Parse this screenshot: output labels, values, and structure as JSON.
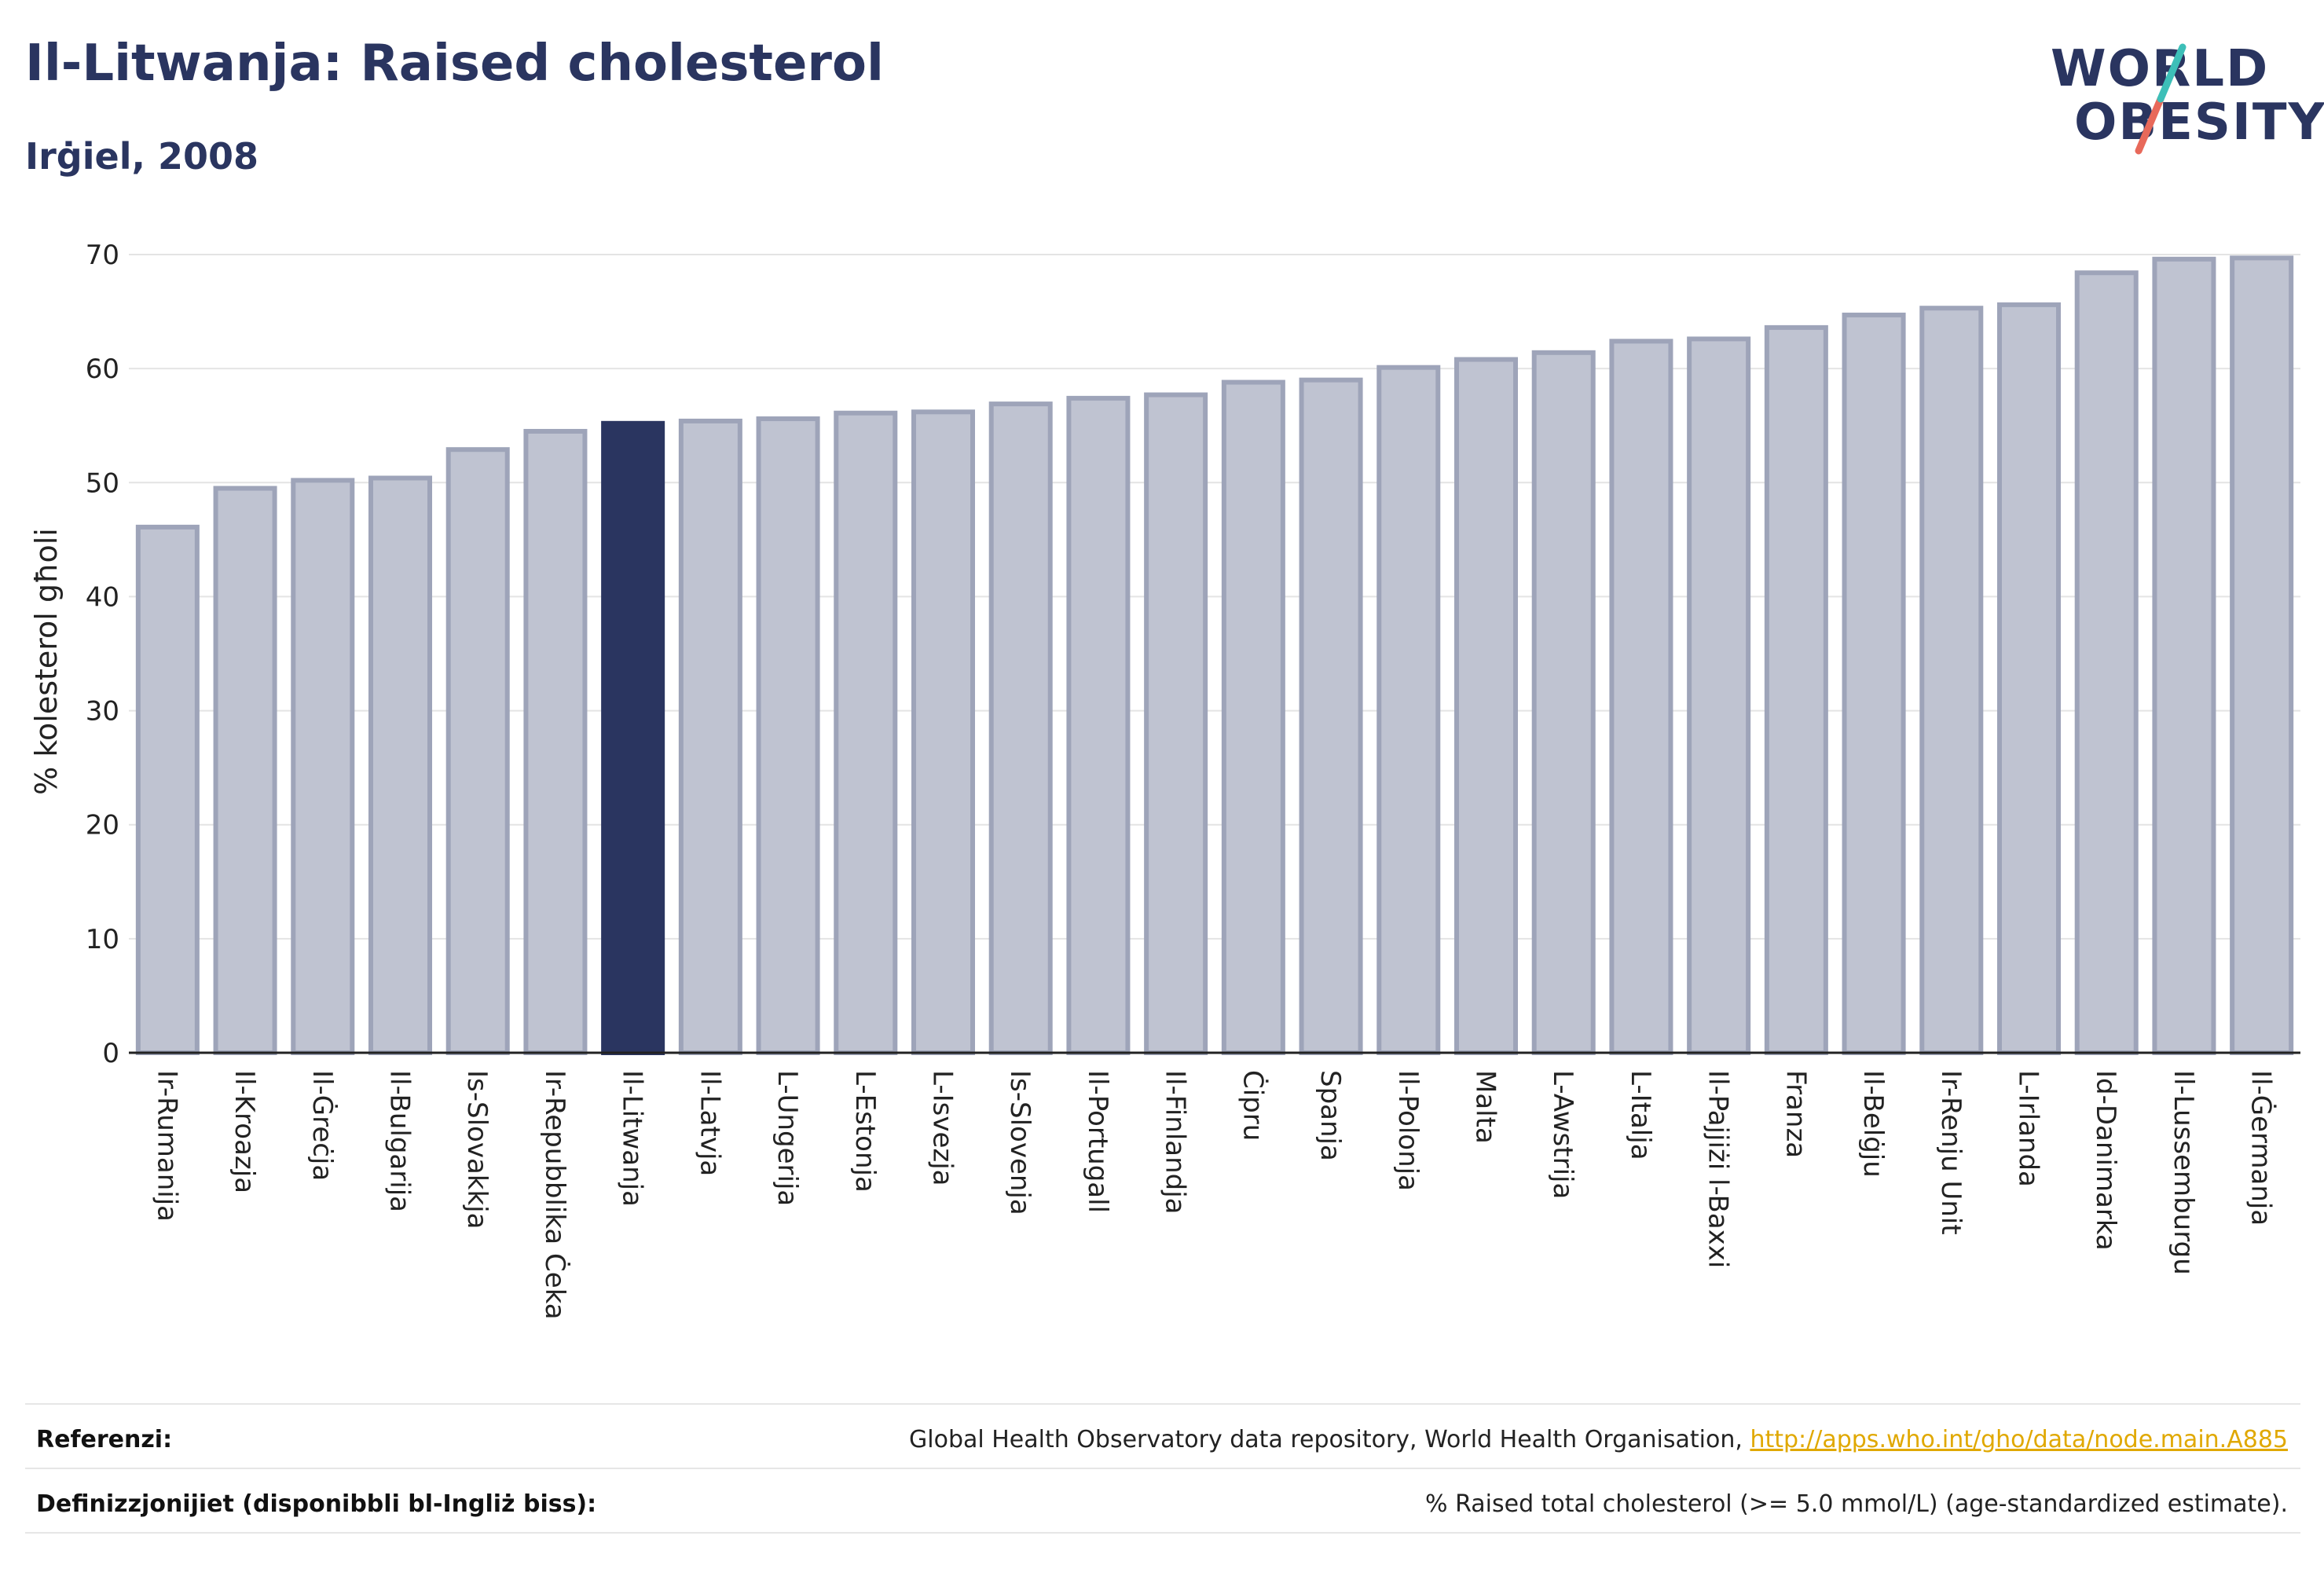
{
  "title": "Il-Litwanja: Raised cholesterol",
  "subtitle": "Irġiel, 2008",
  "logo": {
    "line1": "WORLD",
    "line2": "OBESITY"
  },
  "colors": {
    "title": "#2a3560",
    "highlight_bar": "#2a3560",
    "bar_fill": "#bfc3d1",
    "bar_stroke": "#9ea4b9",
    "logo_slash_teal": "#3dbfb8",
    "logo_slash_coral": "#e8695a",
    "link": "#e0a800"
  },
  "chart_data": {
    "type": "bar",
    "ylabel": "% kolesterol għoli",
    "xlabel": "",
    "ylim": [
      0,
      70
    ],
    "yticks": [
      0,
      10,
      20,
      30,
      40,
      50,
      60,
      70
    ],
    "grid": true,
    "highlight": "Il-Litwanja",
    "categories": [
      "Ir-Rumanija",
      "Il-Kroazja",
      "Il-Ġreċja",
      "Il-Bulgarija",
      "Is-Slovakkja",
      "Ir-Repubblika Ċeka",
      "Il-Litwanja",
      "Il-Latvja",
      "L-Ungerija",
      "L-Estonja",
      "L-Isvezja",
      "Is-Slovenja",
      "Il-Portugall",
      "Il-Finlandja",
      "Ċipru",
      "Spanja",
      "Il-Polonja",
      "Malta",
      "L-Awstrija",
      "L-Italja",
      "Il-Pajjiżi l-Baxxi",
      "Franza",
      "Il-Belġju",
      "Ir-Renju Unit",
      "L-Irlanda",
      "Id-Danimarka",
      "Il-Lussemburgu",
      "Il-Ġermanja"
    ],
    "values": [
      46.1,
      49.5,
      50.2,
      50.4,
      52.9,
      54.5,
      55.2,
      55.4,
      55.6,
      56.1,
      56.2,
      56.9,
      57.4,
      57.7,
      58.8,
      59.0,
      60.1,
      60.8,
      61.4,
      62.4,
      62.6,
      63.6,
      64.7,
      65.3,
      65.6,
      68.4,
      69.6,
      69.7
    ]
  },
  "footer": {
    "references_label": "Referenzi:",
    "references_text": "Global Health Observatory data repository, World Health Organisation, ",
    "references_link": "http://apps.who.int/gho/data/node.main.A885",
    "definitions_label": "Definizzjonijiet (disponibbli bl-Ingliż biss):",
    "definitions_text": "% Raised total cholesterol (>= 5.0 mmol/L) (age-standardized estimate)."
  }
}
